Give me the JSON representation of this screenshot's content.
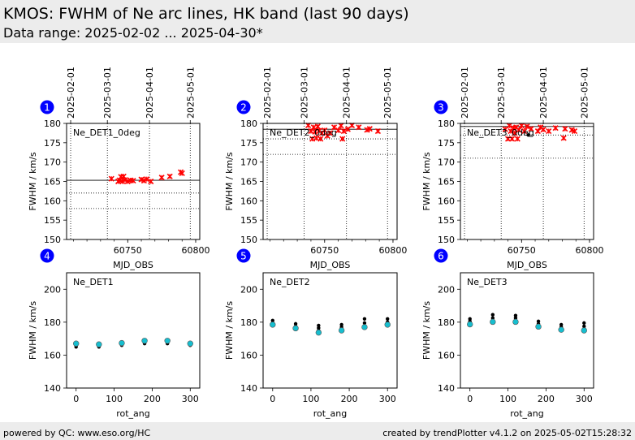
{
  "header": {
    "title": "KMOS: FWHM of Ne arc lines, HK band (last 90 days)",
    "subtitle": "Data range: 2025-02-02 ... 2025-04-30*"
  },
  "footer": {
    "left": "powered by QC: www.eso.org/HC",
    "right": "created by trendPlotter v4.1.2 on 2025-05-02T15:28:32"
  },
  "colors": {
    "trend_points": "#ff0000",
    "rot_fill": "#17becf",
    "rot_black": "#000000",
    "badge": "#0000ff"
  },
  "chart_data": [
    {
      "type": "scatter",
      "badge": "1",
      "label": "Ne_DET1_0deg",
      "xlabel": "MJD_OBS",
      "ylabel": "FWHM / km/s",
      "xlim": [
        60705,
        60803
      ],
      "ylim": [
        150,
        180
      ],
      "xticks": [
        60750,
        60800
      ],
      "yticks": [
        150,
        155,
        160,
        165,
        170,
        175,
        180
      ],
      "date_ticks": [
        {
          "x": 60708,
          "label": "2025-02-01"
        },
        {
          "x": 60735,
          "label": "2025-03-01"
        },
        {
          "x": 60766,
          "label": "2025-04-01"
        },
        {
          "x": 60796,
          "label": "2025-05-01"
        }
      ],
      "hlines_solid": [
        165.3
      ],
      "hlines_dotted": [
        162.0,
        158.0
      ],
      "series": [
        {
          "marker": "red-x",
          "points": [
            [
              60738,
              165.7
            ],
            [
              60743,
              165.0
            ],
            [
              60744,
              165.3
            ],
            [
              60745,
              166.2
            ],
            [
              60746,
              165.0
            ],
            [
              60747,
              166.3
            ],
            [
              60748,
              165.4
            ],
            [
              60750,
              165.0
            ],
            [
              60752,
              165.3
            ],
            [
              60754,
              165.2
            ],
            [
              60760,
              165.5
            ],
            [
              60762,
              165.2
            ],
            [
              60764,
              165.6
            ],
            [
              60767,
              165.0
            ],
            [
              60775,
              166.0
            ],
            [
              60781,
              166.3
            ],
            [
              60789,
              167.4
            ],
            [
              60790,
              167.1
            ]
          ]
        }
      ]
    },
    {
      "type": "scatter",
      "badge": "2",
      "label": "Ne_DET2_0deg",
      "xlabel": "MJD_OBS",
      "ylabel": "FWHM / km/s",
      "xlim": [
        60705,
        60803
      ],
      "ylim": [
        150,
        180
      ],
      "xticks": [
        60750,
        60800
      ],
      "yticks": [
        150,
        155,
        160,
        165,
        170,
        175,
        180
      ],
      "date_ticks": [
        {
          "x": 60708,
          "label": "2025-02-01"
        },
        {
          "x": 60735,
          "label": "2025-03-01"
        },
        {
          "x": 60766,
          "label": "2025-04-01"
        },
        {
          "x": 60796,
          "label": "2025-05-01"
        }
      ],
      "hlines_solid": [
        178.5
      ],
      "hlines_dotted": [
        176.0,
        172.0
      ],
      "series": [
        {
          "marker": "red-x",
          "points": [
            [
              60738,
              179.5
            ],
            [
              60740,
              178.0
            ],
            [
              60741,
              176.0
            ],
            [
              60742,
              179.0
            ],
            [
              60743,
              177.8
            ],
            [
              60744,
              176.2
            ],
            [
              60745,
              179.2
            ],
            [
              60746,
              178.1
            ],
            [
              60747,
              176.0
            ],
            [
              60748,
              177.5
            ],
            [
              60750,
              178.2
            ],
            [
              60752,
              176.8
            ],
            [
              60754,
              177.5
            ],
            [
              60757,
              179.0
            ],
            [
              60760,
              178.2
            ],
            [
              60762,
              179.4
            ],
            [
              60763,
              176.0
            ],
            [
              60764,
              178.0
            ],
            [
              60767,
              178.5
            ],
            [
              60770,
              179.5
            ],
            [
              60775,
              179.0
            ],
            [
              60781,
              178.3
            ],
            [
              60783,
              178.6
            ],
            [
              60789,
              178.0
            ]
          ]
        }
      ]
    },
    {
      "type": "scatter",
      "badge": "3",
      "label": "Ne_DET3_0deg",
      "xlabel": "MJD_OBS",
      "ylabel": "FWHM / km/s",
      "xlim": [
        60705,
        60803
      ],
      "ylim": [
        150,
        180
      ],
      "xticks": [
        60750,
        60800
      ],
      "yticks": [
        150,
        155,
        160,
        165,
        170,
        175,
        180
      ],
      "date_ticks": [
        {
          "x": 60708,
          "label": "2025-02-01"
        },
        {
          "x": 60735,
          "label": "2025-03-01"
        },
        {
          "x": 60766,
          "label": "2025-04-01"
        },
        {
          "x": 60796,
          "label": "2025-05-01"
        }
      ],
      "hlines_solid": [
        179.2
      ],
      "hlines_dotted": [
        177.0,
        171.0
      ],
      "series": [
        {
          "marker": "red-x",
          "points": [
            [
              60738,
              178.5
            ],
            [
              60740,
              176.0
            ],
            [
              60741,
              179.4
            ],
            [
              60742,
              178.0
            ],
            [
              60743,
              176.0
            ],
            [
              60744,
              178.8
            ],
            [
              60745,
              177.5
            ],
            [
              60746,
              179.0
            ],
            [
              60747,
              176.0
            ],
            [
              60748,
              178.3
            ],
            [
              60750,
              179.4
            ],
            [
              60752,
              178.0
            ],
            [
              60754,
              179.2
            ],
            [
              60757,
              178.6
            ],
            [
              60762,
              178.0
            ],
            [
              60764,
              179.0
            ],
            [
              60766,
              178.4
            ],
            [
              60770,
              178.0
            ],
            [
              60775,
              178.8
            ],
            [
              60781,
              176.2
            ],
            [
              60782,
              178.6
            ],
            [
              60787,
              178.3
            ],
            [
              60789,
              178.0
            ]
          ]
        },
        {
          "marker": "black-dot",
          "points": [
            [
              60755,
              177.0
            ]
          ]
        }
      ]
    },
    {
      "type": "scatter",
      "badge": "4",
      "label": "Ne_DET1",
      "xlabel": "rot_ang",
      "ylabel": "FWHM / km/s",
      "xlim": [
        -25,
        325
      ],
      "ylim": [
        140,
        210
      ],
      "xticks": [
        0,
        100,
        200,
        300
      ],
      "yticks": [
        140,
        160,
        180,
        200
      ],
      "series": [
        {
          "marker": "black-dot",
          "points": [
            [
              0,
              165.0
            ],
            [
              0,
              166.0
            ],
            [
              60,
              165.0
            ],
            [
              60,
              166.0
            ],
            [
              120,
              166.0
            ],
            [
              120,
              167.0
            ],
            [
              180,
              167.0
            ],
            [
              180,
              168.0
            ],
            [
              240,
              167.0
            ],
            [
              240,
              168.0
            ],
            [
              300,
              166.0
            ],
            [
              300,
              167.0
            ]
          ]
        },
        {
          "marker": "cyan-circle",
          "points": [
            [
              0,
              167.0
            ],
            [
              60,
              166.5
            ],
            [
              120,
              167.3
            ],
            [
              180,
              168.7
            ],
            [
              240,
              168.7
            ],
            [
              300,
              167.0
            ]
          ]
        }
      ]
    },
    {
      "type": "scatter",
      "badge": "5",
      "label": "Ne_DET2",
      "xlabel": "rot_ang",
      "ylabel": "FWHM / km/s",
      "xlim": [
        -25,
        325
      ],
      "ylim": [
        140,
        210
      ],
      "xticks": [
        0,
        100,
        200,
        300
      ],
      "yticks": [
        140,
        160,
        180,
        200
      ],
      "series": [
        {
          "marker": "black-dot",
          "points": [
            [
              0,
              178.0
            ],
            [
              0,
              179.5
            ],
            [
              0,
              181.0
            ],
            [
              60,
              176.0
            ],
            [
              60,
              177.5
            ],
            [
              60,
              179.0
            ],
            [
              120,
              175.0
            ],
            [
              120,
              176.5
            ],
            [
              120,
              178.0
            ],
            [
              180,
              175.5
            ],
            [
              180,
              177.0
            ],
            [
              180,
              178.5
            ],
            [
              240,
              177.5
            ],
            [
              240,
              179.5
            ],
            [
              240,
              182.0
            ],
            [
              300,
              178.5
            ],
            [
              300,
              180.0
            ],
            [
              300,
              182.0
            ]
          ]
        },
        {
          "marker": "cyan-circle",
          "points": [
            [
              0,
              178.5
            ],
            [
              60,
              176.3
            ],
            [
              120,
              173.7
            ],
            [
              180,
              175.0
            ],
            [
              240,
              177.0
            ],
            [
              300,
              178.5
            ]
          ]
        }
      ]
    },
    {
      "type": "scatter",
      "badge": "6",
      "label": "Ne_DET3",
      "xlabel": "rot_ang",
      "ylabel": "FWHM / km/s",
      "xlim": [
        -25,
        325
      ],
      "ylim": [
        140,
        210
      ],
      "xticks": [
        0,
        100,
        200,
        300
      ],
      "yticks": [
        140,
        160,
        180,
        200
      ],
      "series": [
        {
          "marker": "black-dot",
          "points": [
            [
              0,
              179.0
            ],
            [
              0,
              180.5
            ],
            [
              0,
              182.0
            ],
            [
              60,
              181.0
            ],
            [
              60,
              182.5
            ],
            [
              60,
              184.5
            ],
            [
              120,
              181.0
            ],
            [
              120,
              182.5
            ],
            [
              120,
              184.0
            ],
            [
              180,
              178.0
            ],
            [
              180,
              179.0
            ],
            [
              180,
              180.5
            ],
            [
              240,
              176.0
            ],
            [
              240,
              177.0
            ],
            [
              240,
              178.5
            ],
            [
              300,
              176.0
            ],
            [
              300,
              177.5
            ],
            [
              300,
              179.5
            ]
          ]
        },
        {
          "marker": "cyan-circle",
          "points": [
            [
              0,
              178.7
            ],
            [
              60,
              180.2
            ],
            [
              120,
              180.2
            ],
            [
              180,
              177.3
            ],
            [
              240,
              175.4
            ],
            [
              300,
              175.0
            ]
          ]
        }
      ]
    }
  ]
}
